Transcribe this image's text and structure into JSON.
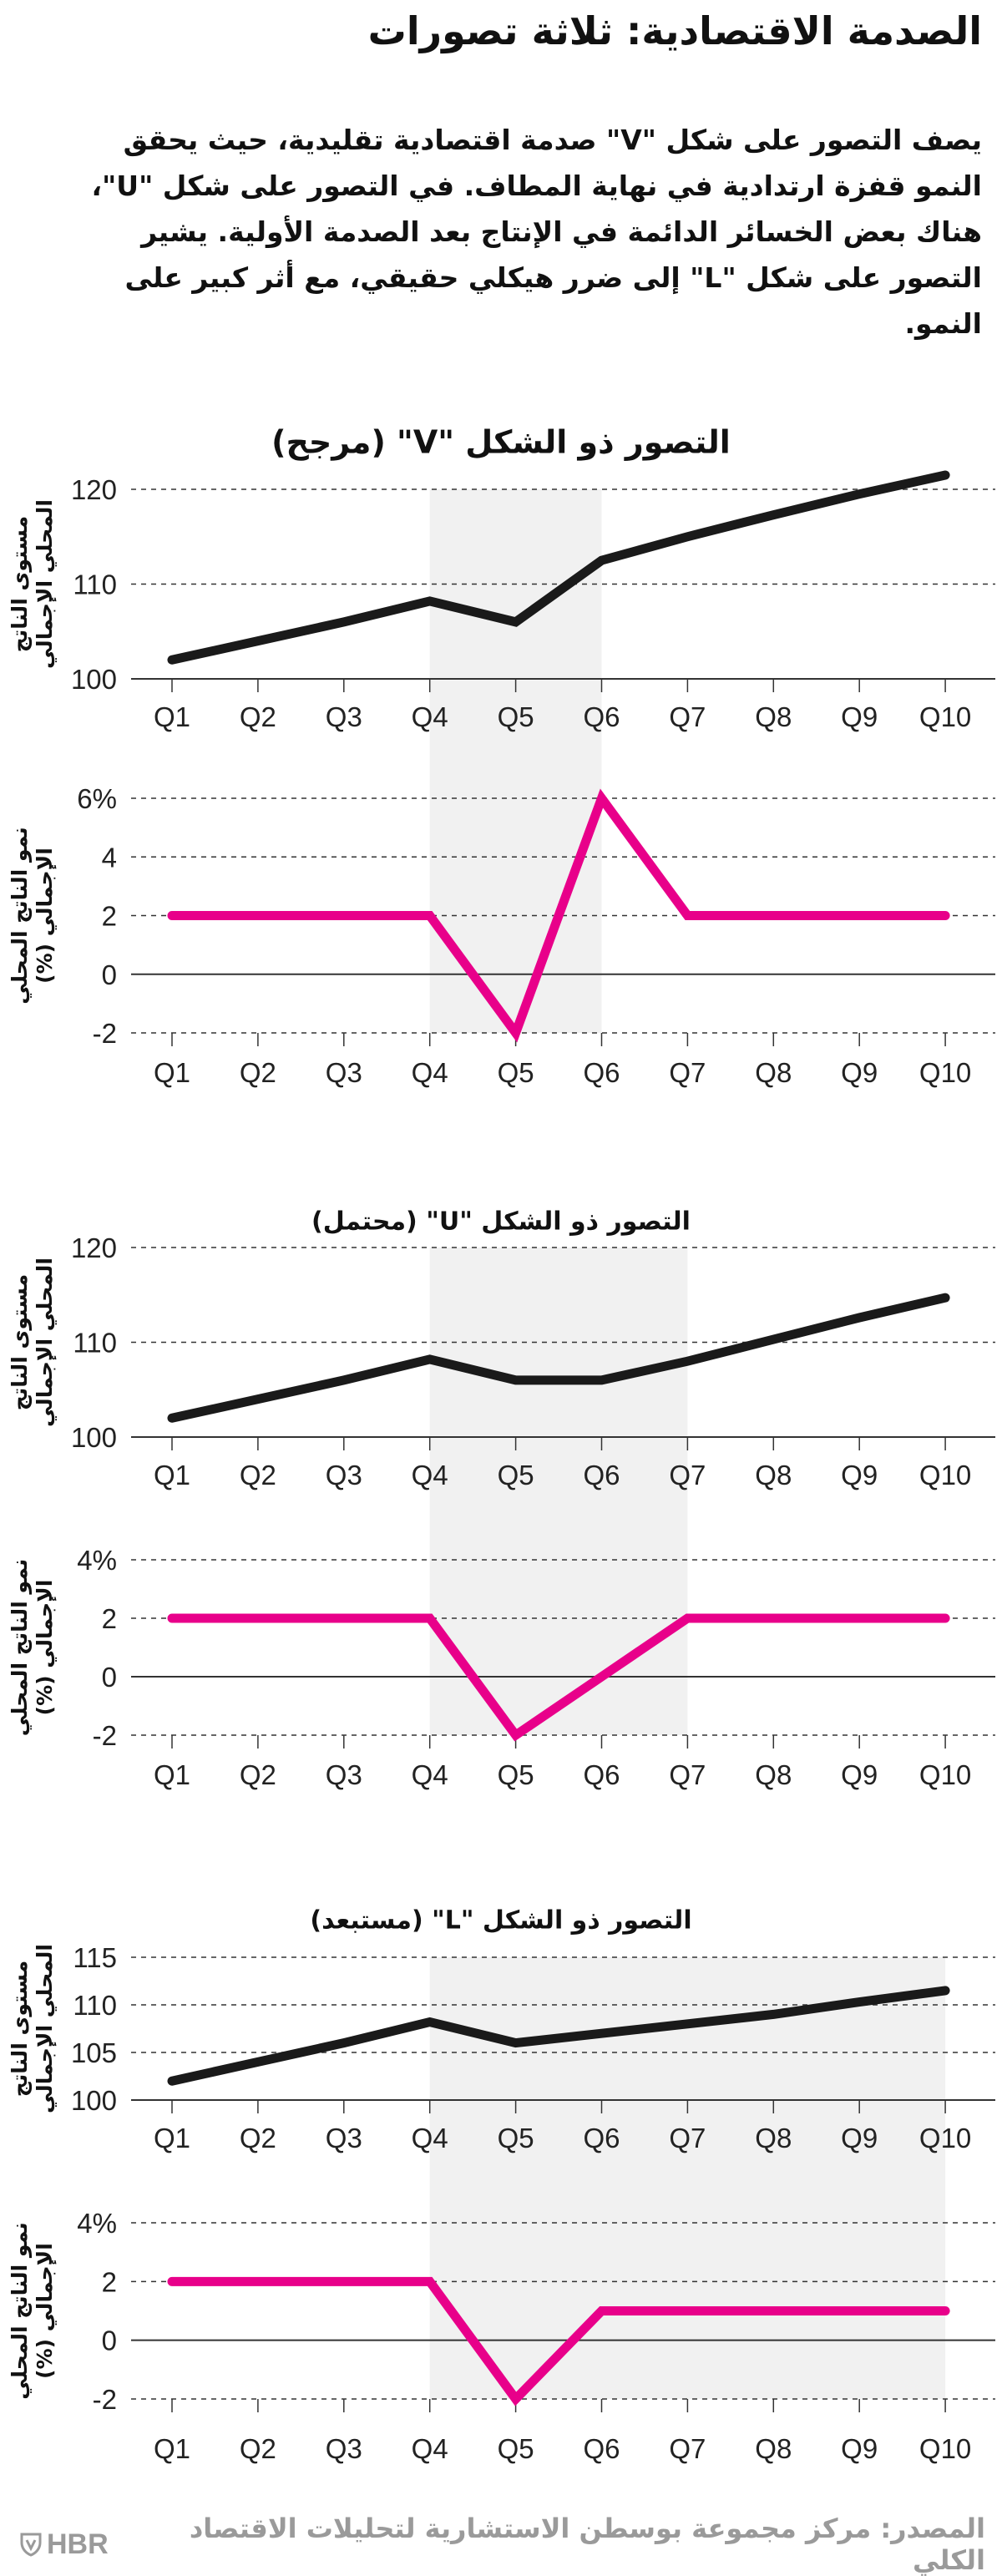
{
  "header": {
    "title": "الصدمة الاقتصادية: ثلاثة تصورات",
    "intro": "يصف التصور على شكل \"V\" صدمة اقتصادية تقليدية، حيث يحقق النمو قفزة ارتدادية في نهاية المطاف. في التصور على شكل \"U\"، هناك بعض الخسائر الدائمة في الإنتاج بعد الصدمة الأولية. يشير التصور على شكل \"L\" إلى ضرر هيكلي حقيقي، مع أثر كبير على النمو."
  },
  "colors": {
    "level": "#1a1a1a",
    "growth": "#e8008a",
    "shade": "#f1f1f1",
    "grid": "#333333"
  },
  "chart_data": [
    {
      "type": "line",
      "title": "التصور ذو الشكل \"V\" (مرجح)",
      "categories": [
        "Q1",
        "Q2",
        "Q3",
        "Q4",
        "Q5",
        "Q6",
        "Q7",
        "Q8",
        "Q9",
        "Q10"
      ],
      "shaded_range": [
        "Q4",
        "Q6"
      ],
      "level": {
        "ylabel": [
          "مستوى الناتج",
          "المحلي الإجمالي"
        ],
        "ylim": [
          100,
          120
        ],
        "ticks": [
          100,
          110,
          120
        ],
        "tick_labels": [
          "100",
          "110",
          "120"
        ],
        "values": [
          102,
          104,
          106,
          108.2,
          106,
          112.5,
          115,
          117.3,
          119.5,
          121.5
        ]
      },
      "growth": {
        "ylabel": [
          "نمو الناتج المحلي",
          "الإجمالي (%)"
        ],
        "ylim": [
          -2,
          6
        ],
        "ticks": [
          -2,
          0,
          2,
          4,
          6
        ],
        "tick_labels": [
          "-2",
          "0",
          "2",
          "4",
          "6%"
        ],
        "values": [
          2,
          2,
          2,
          2,
          -2,
          6,
          2,
          2,
          2,
          2
        ]
      }
    },
    {
      "type": "line",
      "title": "التصور ذو الشكل \"U\" (محتمل)",
      "categories": [
        "Q1",
        "Q2",
        "Q3",
        "Q4",
        "Q5",
        "Q6",
        "Q7",
        "Q8",
        "Q9",
        "Q10"
      ],
      "shaded_range": [
        "Q4",
        "Q7"
      ],
      "level": {
        "ylabel": [
          "مستوى الناتج",
          "المحلي الإجمالي"
        ],
        "ylim": [
          100,
          120
        ],
        "ticks": [
          100,
          110,
          120
        ],
        "tick_labels": [
          "100",
          "110",
          "120"
        ],
        "values": [
          102,
          104,
          106,
          108.2,
          106,
          106,
          108,
          110.3,
          112.6,
          114.7
        ]
      },
      "growth": {
        "ylabel": [
          "نمو الناتج المحلي",
          "الإجمالي (%)"
        ],
        "ylim": [
          -2,
          4
        ],
        "ticks": [
          -2,
          0,
          2,
          4
        ],
        "tick_labels": [
          "-2",
          "0",
          "2",
          "4%"
        ],
        "values": [
          2,
          2,
          2,
          2,
          -2,
          0,
          2,
          2,
          2,
          2
        ]
      }
    },
    {
      "type": "line",
      "title": "التصور ذو الشكل \"L\" (مستبعد)",
      "categories": [
        "Q1",
        "Q2",
        "Q3",
        "Q4",
        "Q5",
        "Q6",
        "Q7",
        "Q8",
        "Q9",
        "Q10"
      ],
      "shaded_range": [
        "Q4",
        "Q10"
      ],
      "level": {
        "ylabel": [
          "مستوى الناتج",
          "المحلي الإجمالي"
        ],
        "ylim": [
          100,
          115
        ],
        "ticks": [
          100,
          105,
          110,
          115
        ],
        "tick_labels": [
          "100",
          "105",
          "110",
          "115"
        ],
        "values": [
          102,
          104,
          106,
          108.2,
          106,
          107,
          108,
          109,
          110.3,
          111.5
        ]
      },
      "growth": {
        "ylabel": [
          "نمو الناتج المحلي",
          "الإجمالي (%)"
        ],
        "ylim": [
          -2,
          4
        ],
        "ticks": [
          -2,
          0,
          2,
          4
        ],
        "tick_labels": [
          "-2",
          "0",
          "2",
          "4%"
        ],
        "values": [
          2,
          2,
          2,
          2,
          -2,
          1,
          1,
          1,
          1,
          1
        ]
      }
    }
  ],
  "footer": {
    "source": "المصدر: مركز مجموعة بوسطن الاستشارية لتحليلات الاقتصاد الكلي",
    "logo": "HBR"
  }
}
